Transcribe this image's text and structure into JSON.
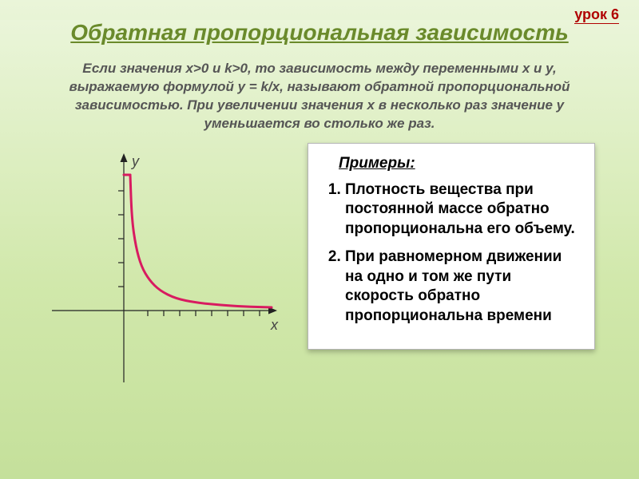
{
  "lesson_tag": "урок 6",
  "title": "Обратная пропорциональная зависимость",
  "intro": "Если значения x>0  и  k>0, то зависимость между переменными x и y, выражаемую формулой y = k/x, называют обратной пропорциональной зависимостью. При увеличении значения x в несколько раз значение y уменьшается во столько же раз.",
  "examples_heading": "Примеры:",
  "examples": [
    "Плотность вещества при постоянной массе обратно пропорциональна его объему.",
    "При равномерном движении на одно и том же пути скорость обратно пропорциональна времени"
  ],
  "chart": {
    "type": "line",
    "x_label": "x",
    "y_label": "y",
    "curve_color": "#d81b60",
    "curve_width": 3,
    "axis_color": "#222222",
    "axis_width": 1.2,
    "background": "transparent",
    "x_axis_y": 210,
    "y_axis_x": 110,
    "x_range": [
      20,
      300
    ],
    "y_range": [
      15,
      300
    ],
    "ticks_y": [
      60,
      90,
      120,
      150,
      180
    ],
    "ticks_x": [
      140,
      160,
      180,
      200,
      220,
      240,
      260,
      280
    ],
    "tick_len": 7,
    "curve_points": [
      [
        118,
        40
      ],
      [
        120,
        95
      ],
      [
        125,
        130
      ],
      [
        132,
        155
      ],
      [
        142,
        172
      ],
      [
        155,
        185
      ],
      [
        175,
        195
      ],
      [
        200,
        200
      ],
      [
        230,
        203
      ],
      [
        260,
        205
      ],
      [
        295,
        206
      ]
    ],
    "cap_points": [
      [
        110,
        40
      ],
      [
        118,
        40
      ]
    ],
    "arrow_size": 9
  }
}
